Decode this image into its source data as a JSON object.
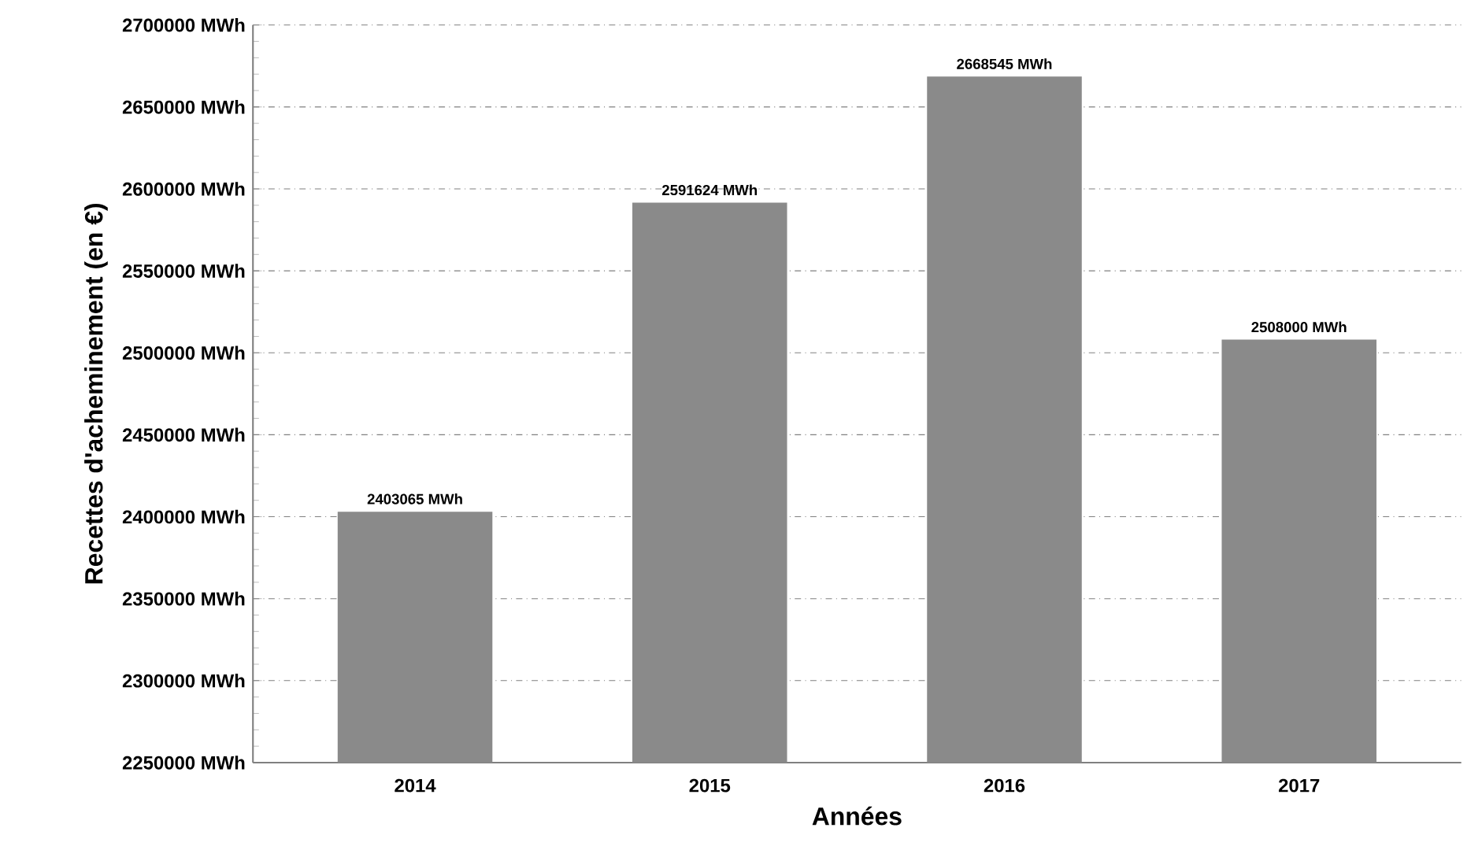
{
  "chart_data": {
    "type": "bar",
    "xlabel": "Années",
    "ylabel": "Recettes d'acheminement (en €)",
    "categories": [
      "2014",
      "2015",
      "2016",
      "2017"
    ],
    "values": [
      2403065,
      2591624,
      2668545,
      2508000
    ],
    "value_labels": [
      "2403065  MWh",
      "2591624  MWh",
      "2668545  MWh",
      "2508000  MWh"
    ],
    "color": "#8a8a8a",
    "ylim": [
      2250000,
      2700000
    ],
    "yticks": [
      {
        "value": 2250000,
        "label": "2250000 MWh"
      },
      {
        "value": 2300000,
        "label": "2300000 MWh"
      },
      {
        "value": 2350000,
        "label": "2350000 MWh"
      },
      {
        "value": 2400000,
        "label": "2400000 MWh"
      },
      {
        "value": 2450000,
        "label": "2450000 MWh"
      },
      {
        "value": 2500000,
        "label": "2500000 MWh"
      },
      {
        "value": 2550000,
        "label": "2550000 MWh"
      },
      {
        "value": 2600000,
        "label": "2600000 MWh"
      },
      {
        "value": 2650000,
        "label": "2650000 MWh"
      },
      {
        "value": 2700000,
        "label": "2700000 MWh"
      }
    ],
    "grid": "y"
  }
}
